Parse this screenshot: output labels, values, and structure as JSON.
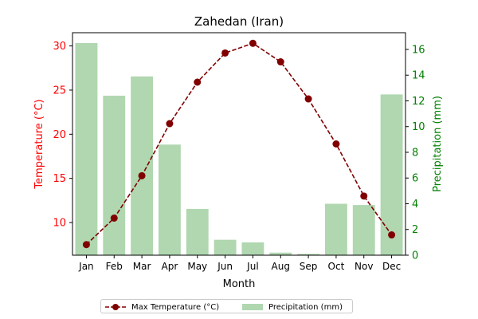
{
  "chart_data": {
    "type": "bar+line",
    "title": "Zahedan (Iran)",
    "xlabel": "Month",
    "ylabel_left": "Temperature (°C)",
    "ylabel_right": "Precipitation (mm)",
    "categories": [
      "Jan",
      "Feb",
      "Mar",
      "Apr",
      "May",
      "Jun",
      "Jul",
      "Aug",
      "Sep",
      "Oct",
      "Nov",
      "Dec"
    ],
    "left_axis": {
      "ylim": [
        6.3,
        31.5
      ],
      "ticks": [
        10,
        15,
        20,
        25,
        30
      ],
      "tick_labels": [
        "10",
        "15",
        "20",
        "25",
        "30"
      ],
      "color": "#ff0000"
    },
    "right_axis": {
      "ylim": [
        0,
        17.3
      ],
      "ticks": [
        0,
        2,
        4,
        6,
        8,
        10,
        12,
        14,
        16
      ],
      "tick_labels": [
        "0",
        "2",
        "4",
        "6",
        "8",
        "10",
        "12",
        "14",
        "16"
      ],
      "color": "#008000"
    },
    "series": [
      {
        "name": "Max Temperature (°C)",
        "type": "line",
        "axis": "left",
        "color": "#800000",
        "style": "dashed",
        "marker": "circle",
        "values": [
          7.5,
          10.5,
          15.3,
          21.2,
          25.9,
          29.2,
          30.3,
          28.2,
          24.0,
          18.9,
          13.0,
          8.6
        ]
      },
      {
        "name": "Precipitation (mm)",
        "type": "bar",
        "axis": "right",
        "color": "#b0d7b0",
        "values": [
          16.5,
          12.4,
          13.9,
          8.6,
          3.6,
          1.2,
          1.0,
          0.2,
          0.1,
          4.0,
          3.9,
          12.5
        ]
      }
    ],
    "grid": false,
    "legend_position": "bottom-center"
  }
}
